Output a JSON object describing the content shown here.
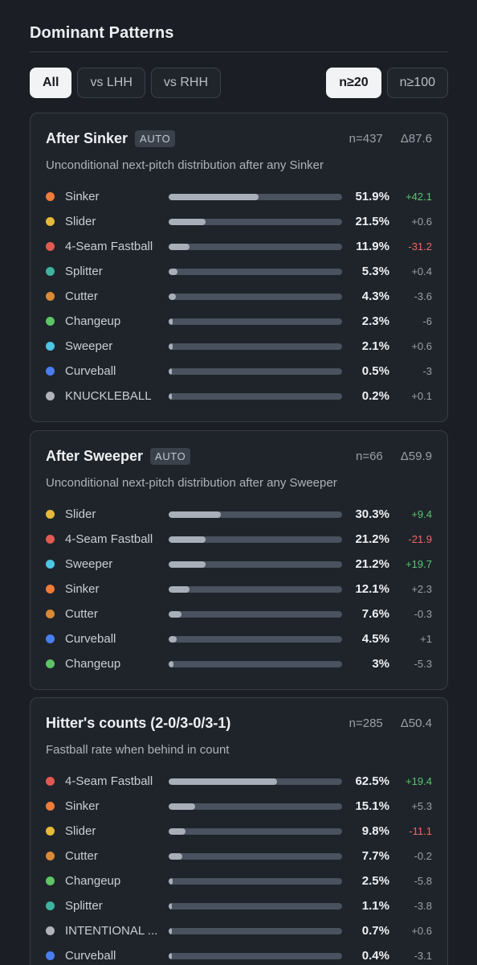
{
  "header": {
    "title": "Dominant Patterns"
  },
  "filters": {
    "hand": [
      {
        "label": "All",
        "active": true
      },
      {
        "label": "vs LHH",
        "active": false
      },
      {
        "label": "vs RHH",
        "active": false
      }
    ],
    "sample": [
      {
        "label": "n≥20",
        "active": true
      },
      {
        "label": "n≥100",
        "active": false
      }
    ]
  },
  "colors": {
    "sinker": "#f07c3a",
    "slider": "#e6b93a",
    "four_seam": "#e05a52",
    "splitter": "#3fb3a0",
    "cutter": "#d88a36",
    "changeup": "#5ec466",
    "sweeper": "#4cc6e4",
    "curveball": "#4a7ef0",
    "other": "#b0b4ba"
  },
  "cards": [
    {
      "title": "After Sinker",
      "badge": "AUTO",
      "n": "n=437",
      "delta": "Δ87.6",
      "description": "Unconditional next-pitch distribution after any Sinker",
      "rows": [
        {
          "name": "Sinker",
          "color": "#f07c3a",
          "pct": "51.9%",
          "value": 51.9,
          "delta": "+42.1",
          "tone": "pos"
        },
        {
          "name": "Slider",
          "color": "#e6b93a",
          "pct": "21.5%",
          "value": 21.5,
          "delta": "+0.6",
          "tone": ""
        },
        {
          "name": "4-Seam Fastball",
          "color": "#e05a52",
          "pct": "11.9%",
          "value": 11.9,
          "delta": "-31.2",
          "tone": "neg"
        },
        {
          "name": "Splitter",
          "color": "#3fb3a0",
          "pct": "5.3%",
          "value": 5.3,
          "delta": "+0.4",
          "tone": ""
        },
        {
          "name": "Cutter",
          "color": "#d88a36",
          "pct": "4.3%",
          "value": 4.3,
          "delta": "-3.6",
          "tone": ""
        },
        {
          "name": "Changeup",
          "color": "#5ec466",
          "pct": "2.3%",
          "value": 2.3,
          "delta": "-6",
          "tone": ""
        },
        {
          "name": "Sweeper",
          "color": "#4cc6e4",
          "pct": "2.1%",
          "value": 2.1,
          "delta": "+0.6",
          "tone": ""
        },
        {
          "name": "Curveball",
          "color": "#4a7ef0",
          "pct": "0.5%",
          "value": 0.5,
          "delta": "-3",
          "tone": ""
        },
        {
          "name": "KNUCKLEBALL",
          "color": "#b0b4ba",
          "pct": "0.2%",
          "value": 0.2,
          "delta": "+0.1",
          "tone": ""
        }
      ]
    },
    {
      "title": "After Sweeper",
      "badge": "AUTO",
      "n": "n=66",
      "delta": "Δ59.9",
      "description": "Unconditional next-pitch distribution after any Sweeper",
      "rows": [
        {
          "name": "Slider",
          "color": "#e6b93a",
          "pct": "30.3%",
          "value": 30.3,
          "delta": "+9.4",
          "tone": "pos"
        },
        {
          "name": "4-Seam Fastball",
          "color": "#e05a52",
          "pct": "21.2%",
          "value": 21.2,
          "delta": "-21.9",
          "tone": "neg"
        },
        {
          "name": "Sweeper",
          "color": "#4cc6e4",
          "pct": "21.2%",
          "value": 21.2,
          "delta": "+19.7",
          "tone": "pos"
        },
        {
          "name": "Sinker",
          "color": "#f07c3a",
          "pct": "12.1%",
          "value": 12.1,
          "delta": "+2.3",
          "tone": ""
        },
        {
          "name": "Cutter",
          "color": "#d88a36",
          "pct": "7.6%",
          "value": 7.6,
          "delta": "-0.3",
          "tone": ""
        },
        {
          "name": "Curveball",
          "color": "#4a7ef0",
          "pct": "4.5%",
          "value": 4.5,
          "delta": "+1",
          "tone": ""
        },
        {
          "name": "Changeup",
          "color": "#5ec466",
          "pct": "3%",
          "value": 3,
          "delta": "-5.3",
          "tone": ""
        }
      ]
    },
    {
      "title": "Hitter's counts (2-0/3-0/3-1)",
      "badge": "",
      "n": "n=285",
      "delta": "Δ50.4",
      "description": "Fastball rate when behind in count",
      "rows": [
        {
          "name": "4-Seam Fastball",
          "color": "#e05a52",
          "pct": "62.5%",
          "value": 62.5,
          "delta": "+19.4",
          "tone": "pos"
        },
        {
          "name": "Sinker",
          "color": "#f07c3a",
          "pct": "15.1%",
          "value": 15.1,
          "delta": "+5.3",
          "tone": ""
        },
        {
          "name": "Slider",
          "color": "#e6b93a",
          "pct": "9.8%",
          "value": 9.8,
          "delta": "-11.1",
          "tone": "neg"
        },
        {
          "name": "Cutter",
          "color": "#d88a36",
          "pct": "7.7%",
          "value": 7.7,
          "delta": "-0.2",
          "tone": ""
        },
        {
          "name": "Changeup",
          "color": "#5ec466",
          "pct": "2.5%",
          "value": 2.5,
          "delta": "-5.8",
          "tone": ""
        },
        {
          "name": "Splitter",
          "color": "#3fb3a0",
          "pct": "1.1%",
          "value": 1.1,
          "delta": "-3.8",
          "tone": ""
        },
        {
          "name": "INTENTIONAL ...",
          "color": "#b0b4ba",
          "pct": "0.7%",
          "value": 0.7,
          "delta": "+0.6",
          "tone": ""
        },
        {
          "name": "Curveball",
          "color": "#4a7ef0",
          "pct": "0.4%",
          "value": 0.4,
          "delta": "-3.1",
          "tone": ""
        }
      ]
    }
  ]
}
